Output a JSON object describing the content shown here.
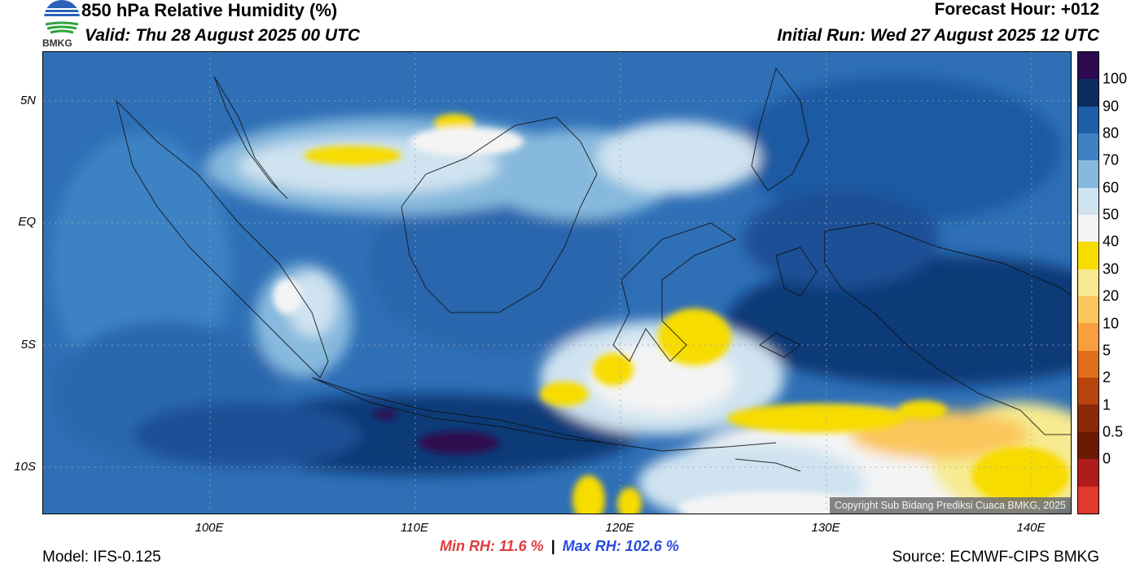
{
  "header": {
    "title": "850 hPa Relative Humidity (%)",
    "valid": "Valid: Thu 28 August 2025 00 UTC",
    "forecast_hour": "Forecast Hour: +012",
    "initial_run": "Initial Run: Wed 27 August 2025 12 UTC"
  },
  "logo": {
    "text": "BMKG"
  },
  "map": {
    "copyright": "Copyright Sub Bidang Prediksi Cuaca BMKG, 2025",
    "lat_labels": [
      "5N",
      "EQ",
      "5S",
      "10S"
    ],
    "lon_labels": [
      "100E",
      "110E",
      "120E",
      "130E",
      "140E"
    ]
  },
  "colorbar": {
    "labels": [
      "100",
      "90",
      "80",
      "70",
      "60",
      "50",
      "40",
      "30",
      "20",
      "10",
      "5",
      "2",
      "1",
      "0.5",
      "0"
    ],
    "colors": [
      "#2d0a4f",
      "#0b2d5f",
      "#1f5ea8",
      "#3d83c4",
      "#86b9dd",
      "#cfe3f0",
      "#f4f4f4",
      "#f7dc00",
      "#f7ea90",
      "#fbc65c",
      "#f8a040",
      "#e0701c",
      "#b8440e",
      "#8a2a08",
      "#6b1a04",
      "#b01c1c",
      "#e03a2c"
    ]
  },
  "stats": {
    "min_rh": "Min RH:  11.6 %",
    "separator": "|",
    "max_rh": "Max RH: 102.6 %"
  },
  "footer": {
    "model": "Model: IFS-0.125",
    "source": "Source: ECMWF-CIPS BMKG"
  }
}
